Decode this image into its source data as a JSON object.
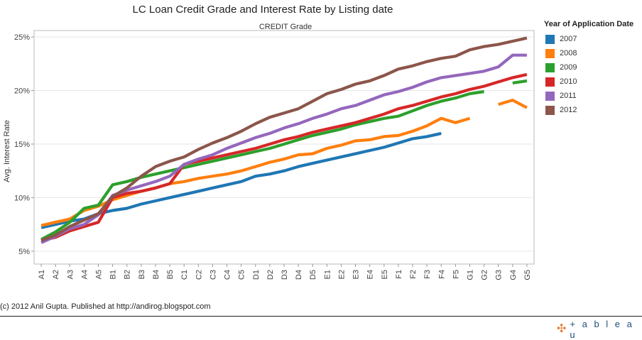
{
  "chart_data": {
    "type": "line",
    "title": "LC Loan Credit Grade and Interest Rate by Listing date",
    "subtitle": "CREDIT Grade",
    "xlabel": "CREDIT Grade",
    "ylabel": "Avg. Interest Rate",
    "ylim": [
      3.8,
      25.6
    ],
    "yticks": [
      5,
      10,
      15,
      20,
      25
    ],
    "ytick_labels": [
      "5%",
      "10%",
      "15%",
      "20%",
      "25%"
    ],
    "legend_title": "Year of Application Date",
    "legend_position": "right",
    "categories": [
      "A1",
      "A2",
      "A3",
      "A4",
      "A5",
      "B1",
      "B2",
      "B3",
      "B4",
      "B5",
      "C1",
      "C2",
      "C3",
      "C4",
      "C5",
      "D1",
      "D2",
      "D3",
      "D4",
      "D5",
      "E1",
      "E2",
      "E3",
      "E4",
      "E5",
      "F1",
      "F2",
      "F3",
      "F4",
      "F5",
      "G1",
      "G2",
      "G3",
      "G4",
      "G5"
    ],
    "series": [
      {
        "name": "2007",
        "color": "#1f77b4",
        "values": [
          7.2,
          7.5,
          7.8,
          8.0,
          8.5,
          8.8,
          9.0,
          9.4,
          9.7,
          10.0,
          10.3,
          10.6,
          10.9,
          11.2,
          11.5,
          12.0,
          12.2,
          12.5,
          12.9,
          13.2,
          13.5,
          13.8,
          14.1,
          14.4,
          14.7,
          15.1,
          15.5,
          15.7,
          16.0,
          null,
          null,
          null,
          null,
          null,
          null
        ]
      },
      {
        "name": "2008",
        "color": "#ff7f0e",
        "values": [
          7.4,
          7.7,
          8.0,
          8.8,
          9.2,
          9.8,
          10.2,
          10.6,
          10.9,
          11.3,
          11.5,
          11.8,
          12.0,
          12.2,
          12.5,
          12.9,
          13.3,
          13.6,
          14.0,
          14.1,
          14.6,
          14.9,
          15.3,
          15.4,
          15.7,
          15.8,
          16.2,
          16.7,
          17.4,
          17.0,
          17.4,
          null,
          18.7,
          19.1,
          18.4
        ]
      },
      {
        "name": "2009",
        "color": "#2ca02c",
        "values": [
          6.1,
          6.8,
          7.7,
          9.0,
          9.3,
          11.2,
          11.5,
          11.9,
          12.2,
          12.5,
          12.8,
          13.1,
          13.4,
          13.7,
          14.0,
          14.3,
          14.6,
          15.0,
          15.4,
          15.8,
          16.1,
          16.4,
          16.8,
          17.1,
          17.4,
          17.6,
          18.1,
          18.6,
          19.0,
          19.3,
          19.7,
          19.9,
          null,
          20.7,
          20.9
        ]
      },
      {
        "name": "2010",
        "color": "#d62728",
        "values": [
          6.0,
          6.3,
          6.9,
          7.3,
          7.7,
          10.0,
          10.4,
          10.6,
          10.9,
          11.3,
          13.1,
          13.4,
          13.7,
          14.0,
          14.3,
          14.6,
          15.0,
          15.4,
          15.7,
          16.1,
          16.4,
          16.7,
          17.0,
          17.4,
          17.8,
          18.3,
          18.6,
          19.0,
          19.4,
          19.7,
          20.1,
          20.4,
          20.8,
          21.2,
          21.5
        ]
      },
      {
        "name": "2011",
        "color": "#9467bd",
        "values": [
          5.8,
          6.4,
          7.1,
          7.5,
          8.4,
          10.2,
          10.7,
          11.1,
          11.5,
          12.0,
          13.1,
          13.6,
          14.0,
          14.6,
          15.1,
          15.6,
          16.0,
          16.5,
          16.9,
          17.4,
          17.8,
          18.3,
          18.6,
          19.1,
          19.6,
          19.9,
          20.3,
          20.8,
          21.2,
          21.4,
          21.6,
          21.8,
          22.2,
          23.3,
          23.3
        ]
      },
      {
        "name": "2012",
        "color": "#8c564b",
        "values": [
          6.0,
          6.5,
          7.3,
          7.9,
          8.5,
          10.1,
          10.9,
          12.0,
          12.9,
          13.4,
          13.8,
          14.5,
          15.1,
          15.6,
          16.2,
          16.9,
          17.5,
          17.9,
          18.3,
          19.0,
          19.7,
          20.1,
          20.6,
          20.9,
          21.4,
          22.0,
          22.3,
          22.7,
          23.0,
          23.2,
          23.8,
          24.1,
          24.3,
          24.6,
          24.9
        ]
      }
    ]
  },
  "footer": {
    "credit": "(c) 2012 Anil Gupta. Published at http://andirog.blogspot.com",
    "logo_mark": "✣",
    "logo_text": "+ a b l e a u"
  }
}
